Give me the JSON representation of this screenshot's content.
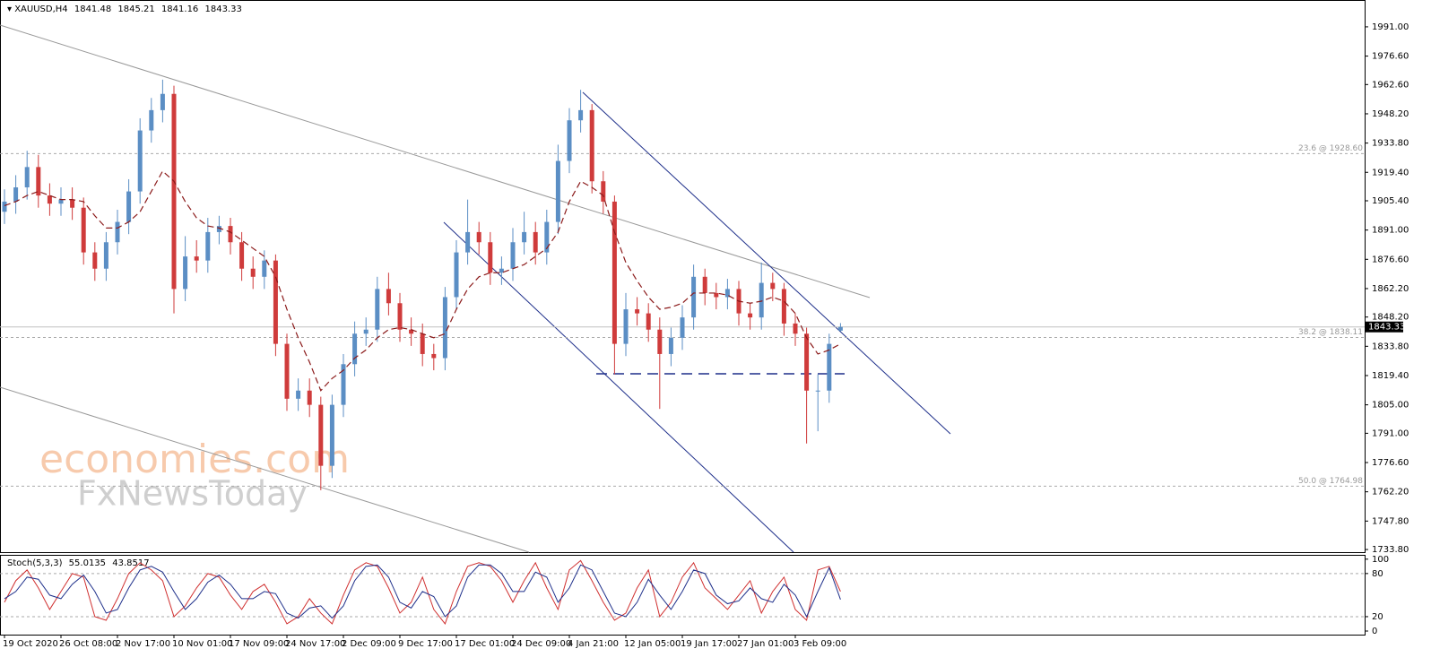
{
  "chart_data": {
    "type": "candlestick",
    "title": "XAUUSD,H4",
    "categories": [
      "19 Oct 2020",
      null,
      null,
      null,
      null,
      "26 Oct 08:00",
      null,
      null,
      null,
      null,
      "2 Nov 17:00",
      null,
      null,
      null,
      null,
      "10 Nov 01:00",
      null,
      null,
      null,
      null,
      "17 Nov 09:00",
      null,
      null,
      null,
      null,
      "24 Nov 17:00",
      null,
      null,
      null,
      null,
      "2 Dec 09:00",
      null,
      null,
      null,
      null,
      "9 Dec 17:00",
      null,
      null,
      null,
      null,
      "17 Dec 01:00",
      null,
      null,
      null,
      null,
      "24 Dec 09:00",
      null,
      null,
      null,
      null,
      "4 Jan 21:00",
      null,
      null,
      null,
      null,
      "12 Jan 05:00",
      null,
      null,
      null,
      null,
      "19 Jan 17:00",
      null,
      null,
      null,
      null,
      "27 Jan 01:00",
      null,
      null,
      null,
      null,
      "3 Feb 09:00",
      null,
      null,
      null,
      null
    ],
    "open": [
      1900,
      1905,
      1912,
      1922,
      1908,
      1904,
      1906,
      1902,
      1880,
      1872,
      1885,
      1895,
      1910,
      1940,
      1950,
      1958,
      1862,
      1878,
      1876,
      1890,
      1893,
      1885,
      1872,
      1868,
      1876,
      1835,
      1808,
      1812,
      1805,
      1775,
      1805,
      1825,
      1840,
      1842,
      1862,
      1855,
      1842,
      1840,
      1830,
      1828,
      1858,
      1880,
      1890,
      1885,
      1870,
      1872,
      1885,
      1890,
      1880,
      1895,
      1925,
      1945,
      1950,
      1915,
      1905,
      1835,
      1852,
      1850,
      1842,
      1830,
      1838,
      1848,
      1868,
      1860,
      1858,
      1862,
      1850,
      1848,
      1865,
      1862,
      1845,
      1840,
      1812,
      1812,
      1841.48
    ],
    "high": [
      1911,
      1918,
      1930,
      1928,
      1914,
      1912,
      1912,
      1907,
      1885,
      1890,
      1901,
      1916,
      1946,
      1956,
      1965,
      1962,
      1888,
      1886,
      1897,
      1898,
      1897,
      1890,
      1878,
      1881,
      1879,
      1840,
      1818,
      1818,
      1809,
      1810,
      1830,
      1846,
      1848,
      1868,
      1870,
      1860,
      1848,
      1845,
      1835,
      1863,
      1886,
      1906,
      1895,
      1890,
      1878,
      1892,
      1900,
      1895,
      1901,
      1933,
      1951,
      1960,
      1953,
      1920,
      1908,
      1860,
      1858,
      1855,
      1848,
      1843,
      1854,
      1874,
      1872,
      1865,
      1867,
      1866,
      1855,
      1875,
      1870,
      1865,
      1850,
      1843,
      1820,
      1840,
      1845.21
    ],
    "low": [
      1894,
      1899,
      1906,
      1902,
      1898,
      1898,
      1896,
      1874,
      1866,
      1866,
      1879,
      1889,
      1904,
      1934,
      1944,
      1850,
      1856,
      1870,
      1870,
      1884,
      1879,
      1866,
      1862,
      1862,
      1829,
      1802,
      1802,
      1799,
      1763,
      1769,
      1799,
      1819,
      1834,
      1836,
      1849,
      1836,
      1834,
      1824,
      1822,
      1822,
      1852,
      1874,
      1879,
      1864,
      1864,
      1866,
      1879,
      1874,
      1874,
      1889,
      1919,
      1939,
      1909,
      1899,
      1820,
      1829,
      1844,
      1836,
      1803,
      1824,
      1832,
      1842,
      1854,
      1852,
      1852,
      1844,
      1842,
      1842,
      1856,
      1839,
      1834,
      1786,
      1792,
      1806,
      1841.16
    ],
    "close": [
      1905,
      1912,
      1922,
      1908,
      1904,
      1906,
      1902,
      1880,
      1872,
      1885,
      1895,
      1910,
      1940,
      1950,
      1958,
      1862,
      1878,
      1876,
      1890,
      1893,
      1885,
      1872,
      1868,
      1876,
      1835,
      1808,
      1812,
      1805,
      1775,
      1805,
      1825,
      1840,
      1842,
      1862,
      1855,
      1842,
      1840,
      1830,
      1828,
      1858,
      1880,
      1890,
      1885,
      1870,
      1872,
      1885,
      1890,
      1880,
      1895,
      1925,
      1945,
      1950,
      1915,
      1905,
      1835,
      1852,
      1850,
      1842,
      1830,
      1838,
      1848,
      1868,
      1860,
      1858,
      1862,
      1850,
      1848,
      1865,
      1862,
      1845,
      1840,
      1812,
      1812,
      1835,
      1843.33
    ],
    "up_color": "#5b8ec4",
    "down_color": "#cf3b3b",
    "ylim": [
      1732.5,
      2004.2
    ],
    "yticks": [
      {
        "value": 1991,
        "label": "1991.00"
      },
      {
        "value": 1976.6,
        "label": "1976.60"
      },
      {
        "value": 1962.6,
        "label": "1962.60"
      },
      {
        "value": 1948.2,
        "label": "1948.20"
      },
      {
        "value": 1933.8,
        "label": "1933.80"
      },
      {
        "value": 1919.4,
        "label": "1919.40"
      },
      {
        "value": 1905.4,
        "label": "1905.40"
      },
      {
        "value": 1891,
        "label": "1891.00"
      },
      {
        "value": 1876.6,
        "label": "1876.60"
      },
      {
        "value": 1862.2,
        "label": "1862.20"
      },
      {
        "value": 1848.2,
        "label": "1848.20"
      },
      {
        "value": 1833.8,
        "label": "1833.80"
      },
      {
        "value": 1819.4,
        "label": "1819.40"
      },
      {
        "value": 1805,
        "label": "1805.00"
      },
      {
        "value": 1791,
        "label": "1791.00"
      },
      {
        "value": 1776.6,
        "label": "1776.60"
      },
      {
        "value": 1762.2,
        "label": "1762.20"
      },
      {
        "value": 1747.8,
        "label": "1747.80"
      },
      {
        "value": 1733.8,
        "label": "1733.80"
      }
    ],
    "moving_average": {
      "color": "#8b1a1a",
      "values": [
        1903,
        1905,
        1908,
        1910,
        1908,
        1906,
        1906,
        1905,
        1898,
        1892,
        1892,
        1895,
        1900,
        1910,
        1920,
        1915,
        1905,
        1897,
        1893,
        1892,
        1890,
        1886,
        1882,
        1878,
        1868,
        1852,
        1838,
        1826,
        1812,
        1818,
        1822,
        1828,
        1832,
        1838,
        1842,
        1843,
        1842,
        1840,
        1838,
        1840,
        1852,
        1862,
        1868,
        1870,
        1870,
        1872,
        1874,
        1878,
        1882,
        1890,
        1905,
        1915,
        1912,
        1908,
        1890,
        1875,
        1866,
        1858,
        1852,
        1853,
        1855,
        1860,
        1860,
        1860,
        1859,
        1856,
        1855,
        1856,
        1858,
        1856,
        1850,
        1838,
        1830,
        1832,
        1835
      ]
    },
    "levels": [
      {
        "value": 1928.6,
        "label": "23.6 @ 1928.60"
      },
      {
        "value": 1838.11,
        "label": "38.2 @ 1838.11"
      },
      {
        "value": 1764.98,
        "label": "50.0 @ 1764.98"
      }
    ],
    "watermark": [
      "economies.com",
      "FxNewsToday"
    ],
    "stochastic": {
      "name": "Stoch(5,3,3)",
      "ylim": [
        -5,
        106
      ],
      "yticks": [
        100,
        80,
        20,
        0
      ],
      "series": [
        {
          "color": "#d03030",
          "values": [
            40,
            70,
            85,
            60,
            30,
            55,
            80,
            75,
            20,
            15,
            45,
            80,
            95,
            85,
            70,
            20,
            35,
            60,
            80,
            75,
            50,
            30,
            55,
            65,
            40,
            10,
            20,
            45,
            25,
            10,
            50,
            85,
            95,
            90,
            60,
            25,
            40,
            75,
            30,
            10,
            55,
            90,
            95,
            90,
            70,
            40,
            70,
            95,
            60,
            30,
            85,
            98,
            70,
            40,
            15,
            25,
            60,
            85,
            20,
            40,
            75,
            95,
            60,
            45,
            30,
            50,
            70,
            25,
            55,
            75,
            30,
            15,
            85,
            90,
            55.0135
          ]
        },
        {
          "color": "#1e2f8a",
          "values": [
            45,
            55,
            75,
            72,
            50,
            45,
            65,
            78,
            55,
            25,
            30,
            60,
            85,
            90,
            82,
            55,
            30,
            45,
            68,
            78,
            65,
            45,
            45,
            55,
            52,
            25,
            18,
            32,
            35,
            18,
            35,
            70,
            90,
            92,
            75,
            40,
            32,
            55,
            48,
            20,
            35,
            75,
            92,
            92,
            80,
            55,
            55,
            82,
            75,
            40,
            60,
            92,
            85,
            55,
            25,
            20,
            40,
            72,
            50,
            30,
            55,
            85,
            80,
            50,
            38,
            42,
            60,
            45,
            40,
            65,
            50,
            20,
            55,
            88,
            43.8517
          ]
        }
      ]
    }
  }
}
